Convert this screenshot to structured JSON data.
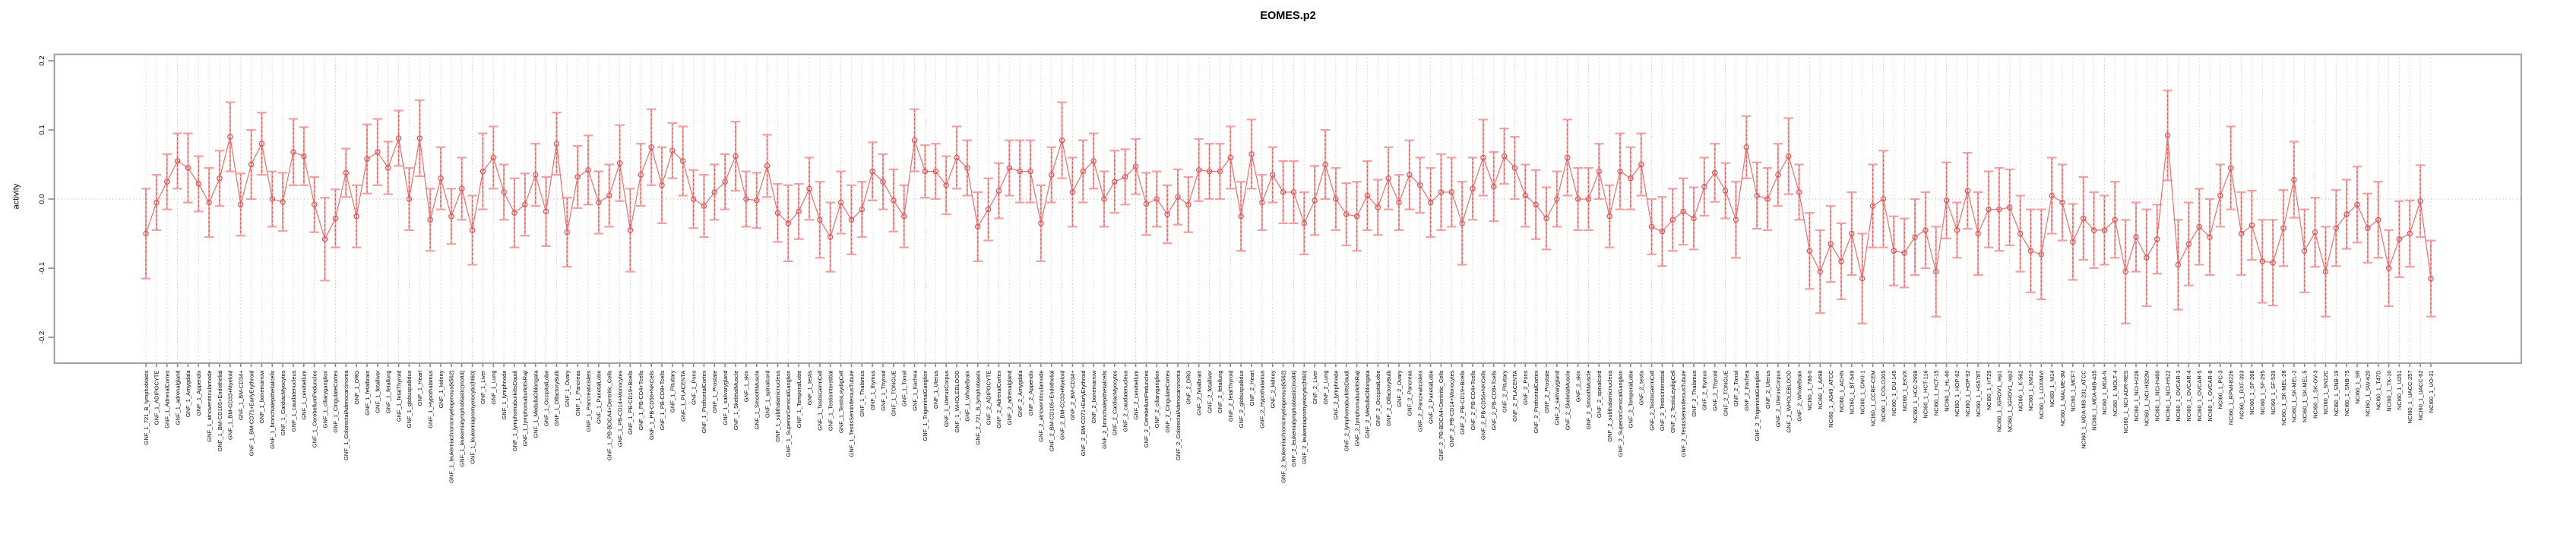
{
  "chart_data": {
    "type": "line",
    "title": "EOMES.p2",
    "ylabel": "activity",
    "xlabel": "",
    "grid": "vertical dotted gridline per category, dotted horizontal zero line",
    "legend_position": "none",
    "ylim": [
      -0.237,
      0.209
    ],
    "ytick_values": [
      0.2,
      0.1,
      0.0,
      -0.1,
      -0.2
    ],
    "ytick_labels": [
      "0.2",
      "0.1",
      "0.0",
      "-0.1",
      "-0.2"
    ],
    "colors": {
      "line": "#ea6a6a",
      "point_stroke": "#dd5050",
      "error_stem_light": "#f4a9a9",
      "error_stem_dash": "#e25555",
      "error_cap": "#f29f9f",
      "gridline": "#d8cfcf",
      "zero_line": "#c9c2c2",
      "border": "#999999",
      "tick": "#888888",
      "text": "#000000"
    },
    "categories": [
      "GNF_1_721_B_lymphoblasts",
      "GNF_1_ADIPOCYTE",
      "GNF_1_AdrenalCortex",
      "GNF_1_adrenalgland",
      "GNF_1_Amygdala",
      "GNF_1_Appendix",
      "GNF_1_atrioventricularnode",
      "GNF_1_BM-CD105+Endothelial",
      "GNF_1_BM-CD33+Myeloid",
      "GNF_1_BM-CD34+",
      "GNF_1_BM-CD71+EarlyErythroid",
      "GNF_1_bonemarrow",
      "GNF_1_bronchialepithelialcells",
      "GNF_1_CardiacMyocytes",
      "GNF_1_caudatenucleus",
      "GNF_1_cerebellum",
      "GNF_1_CerebellumPeduncles",
      "GNF_1_ciliaryganglion",
      "GNF_1_CingulateCortex",
      "GNF_1_ColorectalAdenocarcinoma",
      "GNF_1_DRG",
      "GNF_1_fetalbrain",
      "GNF_1_fetalliver",
      "GNF_1_fetallung",
      "GNF_1_fetalThyroid",
      "GNF_1_globuspallidus",
      "GNF_1_Heart",
      "GNF_1_Hypothalamus",
      "GNF_1_kidney",
      "GNF_1_leukemiachronicmyelogenous(k562)",
      "GNF_1_leukemialymphoblastic(molt4)",
      "GNF_1_leukemiapromyelocytic(hl60)",
      "GNF_1_Liver",
      "GNF_1_Lung",
      "GNF_1_lymphnode",
      "GNF_1_lymphomaburkittsDaudi",
      "GNF_1_lymphomaburkittsRaji",
      "GNF_1_MedullaOblongata",
      "GNF_1_OccipitalLobe",
      "GNF_1_OlfactoryBulb",
      "GNF_1_Ovary",
      "GNF_1_Pancreas",
      "GNF_1_Pancreaticislets",
      "GNF_1_ParietalLobe",
      "GNF_1_PB-BDCA4+Dentritic_Cells",
      "GNF_1_PB-CD14+Monocytes",
      "GNF_1_PB-CD19+Bcells",
      "GNF_1_PB-CD4+Tcells",
      "GNF_1_PB-CD56+NKCells",
      "GNF_1_PB-CD8+Tcells",
      "GNF_1_Pituitary",
      "GNF_1_PLACENTA",
      "GNF_1_Pons",
      "GNF_1_PrefrontalCortex",
      "GNF_1_Prostate",
      "GNF_1_salivarygland",
      "GNF_1_SkeletalMuscle",
      "GNF_1_skin",
      "GNF_1_SmoothMuscle",
      "GNF_1_spinalcord",
      "GNF_1_subthalamicnucleus",
      "GNF_1_SuperiorCervicalGanglion",
      "GNF_1_TemporalLobe",
      "GNF_1_testis",
      "GNF_1_TestisGermCell",
      "GNF_1_TestisInterstitial",
      "GNF_1_TestisLeydigCell",
      "GNF_1_TestisSeminiferousTubule",
      "GNF_1_Thalamus",
      "GNF_1_thymus",
      "GNF_1_Thyroid",
      "GNF_1_TONGUE",
      "GNF_1_Tonsil",
      "GNF_1_trachea",
      "GNF_1_TrigeminalGanglion",
      "GNF_1_Uterus",
      "GNF_1_UterusCorpus",
      "GNF_1_WHOLEBLOOD",
      "GNF_1_WholeBrain",
      "GNF_2_721_B_lymphoblasts",
      "GNF_2_ADIPOCYTE",
      "GNF_2_AdrenalCortex",
      "GNF_2_adrenalgland",
      "GNF_2_Amygdala",
      "GNF_2_Appendix",
      "GNF_2_atrioventricularnode",
      "GNF_2_BM-CD105+Endothelial",
      "GNF_2_BM-CD33+Myeloid",
      "GNF_2_BM-CD34+",
      "GNF_2_BM-CD71+EarlyErythroid",
      "GNF_2_bonemarrow",
      "GNF_2_bronchialepithelialcells",
      "GNF_2_CardiacMyocytes",
      "GNF_2_caudatenucleus",
      "GNF_2_cerebellum",
      "GNF_2_CerebellumPeduncles",
      "GNF_2_ciliaryganglion",
      "GNF_2_CingulateCortex",
      "GNF_2_ColorectalAdenocarcinoma",
      "GNF_2_DRG",
      "GNF_2_fetalbrain",
      "GNF_2_fetalliver",
      "GNF_2_fetallung",
      "GNF_2_fetalThyroid",
      "GNF_2_globuspallidus",
      "GNF_2_Heart",
      "GNF_2_Hypothalamus",
      "GNF_2_kidney",
      "GNF_2_leukemiachronicmyelogenous(k562)",
      "GNF_2_leukemialymphoblastic(molt4)",
      "GNF_2_leukemiapromyelocytic(hl60)",
      "GNF_2_Liver",
      "GNF_2_Lung",
      "GNF_2_lymphnode",
      "GNF_2_lymphomaburkittsDaudi",
      "GNF_2_lymphomaburkittsRaji",
      "GNF_2_MedullaOblongata",
      "GNF_2_OccipitalLobe",
      "GNF_2_OlfactoryBulb",
      "GNF_2_Ovary",
      "GNF_2_Pancreas",
      "GNF_2_Pancreaticislets",
      "GNF_2_ParietalLobe",
      "GNF_2_PB-BDCA4+Dentritic_Cells",
      "GNF_2_PB-CD14+Monocytes",
      "GNF_2_PB-CD19+Bcells",
      "GNF_2_PB-CD4+Tcells",
      "GNF_2_PB-CD56+NKCells",
      "GNF_2_PB-CD8+Tcells",
      "GNF_2_Pituitary",
      "GNF_2_PLACENTA",
      "GNF_2_Pons",
      "GNF_2_PrefrontalCortex",
      "GNF_2_Prostate",
      "GNF_2_salivarygland",
      "GNF_2_SkeletalMuscle",
      "GNF_2_skin",
      "GNF_2_SmoothMuscle",
      "GNF_2_spinalcord",
      "GNF_2_subthalamicnucleus",
      "GNF_2_SuperiorCervicalGanglion",
      "GNF_2_TemporalLobe",
      "GNF_2_testis",
      "GNF_2_TestisGermCell",
      "GNF_2_TestisInterstitial",
      "GNF_2_TestisLeydigCell",
      "GNF_2_TestisSeminiferousTubule",
      "GNF_2_Thalamus",
      "GNF_2_thymus",
      "GNF_2_Thyroid",
      "GNF_2_TONGUE",
      "GNF_2_Tonsil",
      "GNF_2_trachea",
      "GNF_2_TrigeminalGanglion",
      "GNF_2_Uterus",
      "GNF_2_UterusCorpus",
      "GNF_2_WHOLEBLOOD",
      "GNF_2_WholeBrain",
      "NCI60_1_786-0",
      "NCI60_1_A498",
      "NCI60_1_A549_ATCC",
      "NCI60_1_ACHN",
      "NCI60_1_BT-549",
      "NCI60_1_CAKI-1",
      "NCI60_1_CCRF-CEM",
      "NCI60_1_COLO205",
      "NCI60_1_DU-145",
      "NCI60_1_EKVX",
      "NCI60_1_HCC-2998",
      "NCI60_1_HCT-116",
      "NCI60_1_HCT-15",
      "NCI60_1_HL-60",
      "NCI60_1_HOP-62",
      "NCI60_1_HOP-92",
      "NCI60_1_HS578T",
      "NCI60_1_HT29",
      "NCI60_1_IGROV1_rep1",
      "NCI60_1_IGROV1_rep2",
      "NCI60_1_K-562",
      "NCI60_1_KM12",
      "NCI60_1_LOXIMVI",
      "NCI60_1_M14",
      "NCI60_1_MALME-3M",
      "NCI60_1_MCF7",
      "NCI60_1_MDA-MB-231_ATCC",
      "NCI60_1_MDA-MB-435",
      "NCI60_1_MDA-N",
      "NCI60_1_MOLT-4",
      "NCI60_1_NCI-ADR-RES",
      "NCI60_1_NCI-H226",
      "NCI60_1_NCI-H322M",
      "NCI60_1_NCI-H460",
      "NCI60_1_NCI-H522",
      "NCI60_1_OVCAR-3",
      "NCI60_1_OVCAR-4",
      "NCI60_1_OVCAR-5",
      "NCI60_1_OVCAR-8",
      "NCI60_1_PC-3",
      "NCI60_1_RPMI-8226",
      "NCI60_1_RXF-393",
      "NCI60_1_SF-268",
      "NCI60_1_SF-295",
      "NCI60_1_SF-539",
      "NCI60_1_SK-MEL-28",
      "NCI60_1_SK-MEL-2",
      "NCI60_1_SK-MEL-5",
      "NCI60_1_SK-OV-3",
      "NCI60_1_SN12C",
      "NCI60_1_SNB-19",
      "NCI60_1_SNB-75",
      "NCI60_1_SR",
      "NCI60_1_SW-620",
      "NCI60_1_T47D",
      "NCI60_1_TK-10",
      "NCI60_1_U251",
      "NCI60_1_UACC-257",
      "NCI60_1_UACC-62",
      "NCI60_1_UO-31"
    ],
    "values": [
      -0.05,
      -0.005,
      0.025,
      0.055,
      0.045,
      0.022,
      -0.005,
      0.03,
      0.09,
      -0.008,
      0.05,
      0.08,
      0.0,
      -0.004,
      0.068,
      0.062,
      -0.008,
      -0.058,
      -0.028,
      0.038,
      -0.025,
      0.058,
      0.068,
      0.045,
      0.088,
      0.0,
      0.088,
      -0.03,
      0.03,
      -0.025,
      0.015,
      -0.045,
      0.04,
      0.06,
      0.01,
      -0.02,
      -0.008,
      0.035,
      -0.018,
      0.08,
      -0.048,
      0.032,
      0.042,
      -0.005,
      0.005,
      0.052,
      -0.045,
      0.035,
      0.075,
      0.02,
      0.07,
      0.055,
      0.0,
      -0.01,
      0.01,
      0.025,
      0.062,
      0.0,
      -0.002,
      0.048,
      -0.02,
      -0.035,
      -0.018,
      0.015,
      -0.03,
      -0.055,
      -0.005,
      -0.03,
      -0.015,
      0.04,
      0.025,
      -0.002,
      -0.025,
      0.085,
      0.04,
      0.04,
      0.02,
      0.06,
      0.045,
      -0.04,
      -0.015,
      0.012,
      0.045,
      0.04,
      0.04,
      -0.035,
      0.035,
      0.085,
      0.01,
      0.04,
      0.055,
      0.0,
      0.025,
      0.032,
      0.047,
      -0.007,
      0.0,
      -0.022,
      0.003,
      -0.008,
      0.042,
      0.04,
      0.04,
      0.06,
      -0.025,
      0.065,
      -0.005,
      0.035,
      0.01,
      0.01,
      -0.035,
      -0.002,
      0.05,
      0.0,
      -0.022,
      -0.025,
      0.005,
      -0.012,
      0.03,
      -0.005,
      0.035,
      0.02,
      -0.005,
      0.01,
      0.01,
      -0.035,
      0.015,
      0.06,
      0.018,
      0.062,
      0.045,
      0.005,
      -0.008,
      -0.028,
      0.0,
      0.06,
      0.0,
      0.0,
      0.04,
      -0.025,
      0.04,
      0.03,
      0.05,
      -0.04,
      -0.047,
      -0.03,
      -0.018,
      -0.028,
      0.018,
      0.038,
      0.012,
      -0.03,
      0.075,
      0.005,
      0.0,
      0.035,
      0.062,
      0.01,
      -0.075,
      -0.105,
      -0.065,
      -0.09,
      -0.05,
      -0.115,
      -0.01,
      0.0,
      -0.075,
      -0.078,
      -0.055,
      -0.045,
      -0.105,
      -0.002,
      -0.045,
      0.012,
      -0.05,
      -0.015,
      -0.015,
      -0.012,
      -0.05,
      -0.075,
      -0.08,
      0.005,
      -0.005,
      -0.062,
      -0.028,
      -0.045,
      -0.045,
      -0.03,
      -0.105,
      -0.055,
      -0.085,
      -0.058,
      0.092,
      -0.095,
      -0.065,
      -0.04,
      -0.055,
      0.005,
      0.045,
      -0.05,
      -0.038,
      -0.09,
      -0.092,
      -0.042,
      0.028,
      -0.075,
      -0.048,
      -0.105,
      -0.042,
      -0.022,
      -0.008,
      -0.042,
      -0.03,
      -0.1,
      -0.058,
      -0.05,
      -0.003,
      -0.115
    ],
    "errors": [
      0.065,
      0.04,
      0.04,
      0.04,
      0.05,
      0.04,
      0.05,
      0.04,
      0.05,
      0.045,
      0.05,
      0.045,
      0.04,
      0.042,
      0.048,
      0.042,
      0.04,
      0.06,
      0.042,
      0.035,
      0.045,
      0.05,
      0.048,
      0.038,
      0.04,
      0.045,
      0.055,
      0.045,
      0.045,
      0.04,
      0.045,
      0.05,
      0.055,
      0.045,
      0.04,
      0.05,
      0.045,
      0.045,
      0.05,
      0.045,
      0.05,
      0.045,
      0.05,
      0.045,
      0.045,
      0.055,
      0.06,
      0.045,
      0.055,
      0.055,
      0.04,
      0.05,
      0.042,
      0.045,
      0.04,
      0.04,
      0.05,
      0.04,
      0.04,
      0.045,
      0.042,
      0.055,
      0.04,
      0.045,
      0.055,
      0.05,
      0.045,
      0.05,
      0.04,
      0.042,
      0.04,
      0.045,
      0.045,
      0.045,
      0.038,
      0.04,
      0.042,
      0.045,
      0.04,
      0.05,
      0.045,
      0.04,
      0.04,
      0.045,
      0.045,
      0.055,
      0.04,
      0.055,
      0.05,
      0.045,
      0.04,
      0.04,
      0.045,
      0.04,
      0.04,
      0.045,
      0.04,
      0.042,
      0.04,
      0.04,
      0.045,
      0.04,
      0.04,
      0.045,
      0.05,
      0.05,
      0.04,
      0.04,
      0.045,
      0.045,
      0.045,
      0.05,
      0.05,
      0.045,
      0.045,
      0.05,
      0.05,
      0.04,
      0.045,
      0.04,
      0.05,
      0.04,
      0.05,
      0.055,
      0.05,
      0.06,
      0.045,
      0.055,
      0.05,
      0.04,
      0.045,
      0.045,
      0.05,
      0.045,
      0.04,
      0.055,
      0.045,
      0.045,
      0.04,
      0.045,
      0.055,
      0.045,
      0.045,
      0.04,
      0.05,
      0.045,
      0.048,
      0.045,
      0.042,
      0.042,
      0.04,
      0.055,
      0.045,
      0.048,
      0.045,
      0.045,
      0.055,
      0.04,
      0.055,
      0.06,
      0.055,
      0.055,
      0.06,
      0.065,
      0.06,
      0.07,
      0.05,
      0.05,
      0.055,
      0.055,
      0.065,
      0.055,
      0.04,
      0.055,
      0.06,
      0.055,
      0.06,
      0.055,
      0.055,
      0.06,
      0.065,
      0.055,
      0.055,
      0.055,
      0.06,
      0.055,
      0.05,
      0.055,
      0.075,
      0.05,
      0.07,
      0.05,
      0.065,
      0.065,
      0.06,
      0.055,
      0.055,
      0.045,
      0.06,
      0.06,
      0.05,
      0.06,
      0.062,
      0.055,
      0.055,
      0.06,
      0.05,
      0.065,
      0.055,
      0.05,
      0.055,
      0.05,
      0.055,
      0.055,
      0.055,
      0.048,
      0.052,
      0.055
    ]
  }
}
